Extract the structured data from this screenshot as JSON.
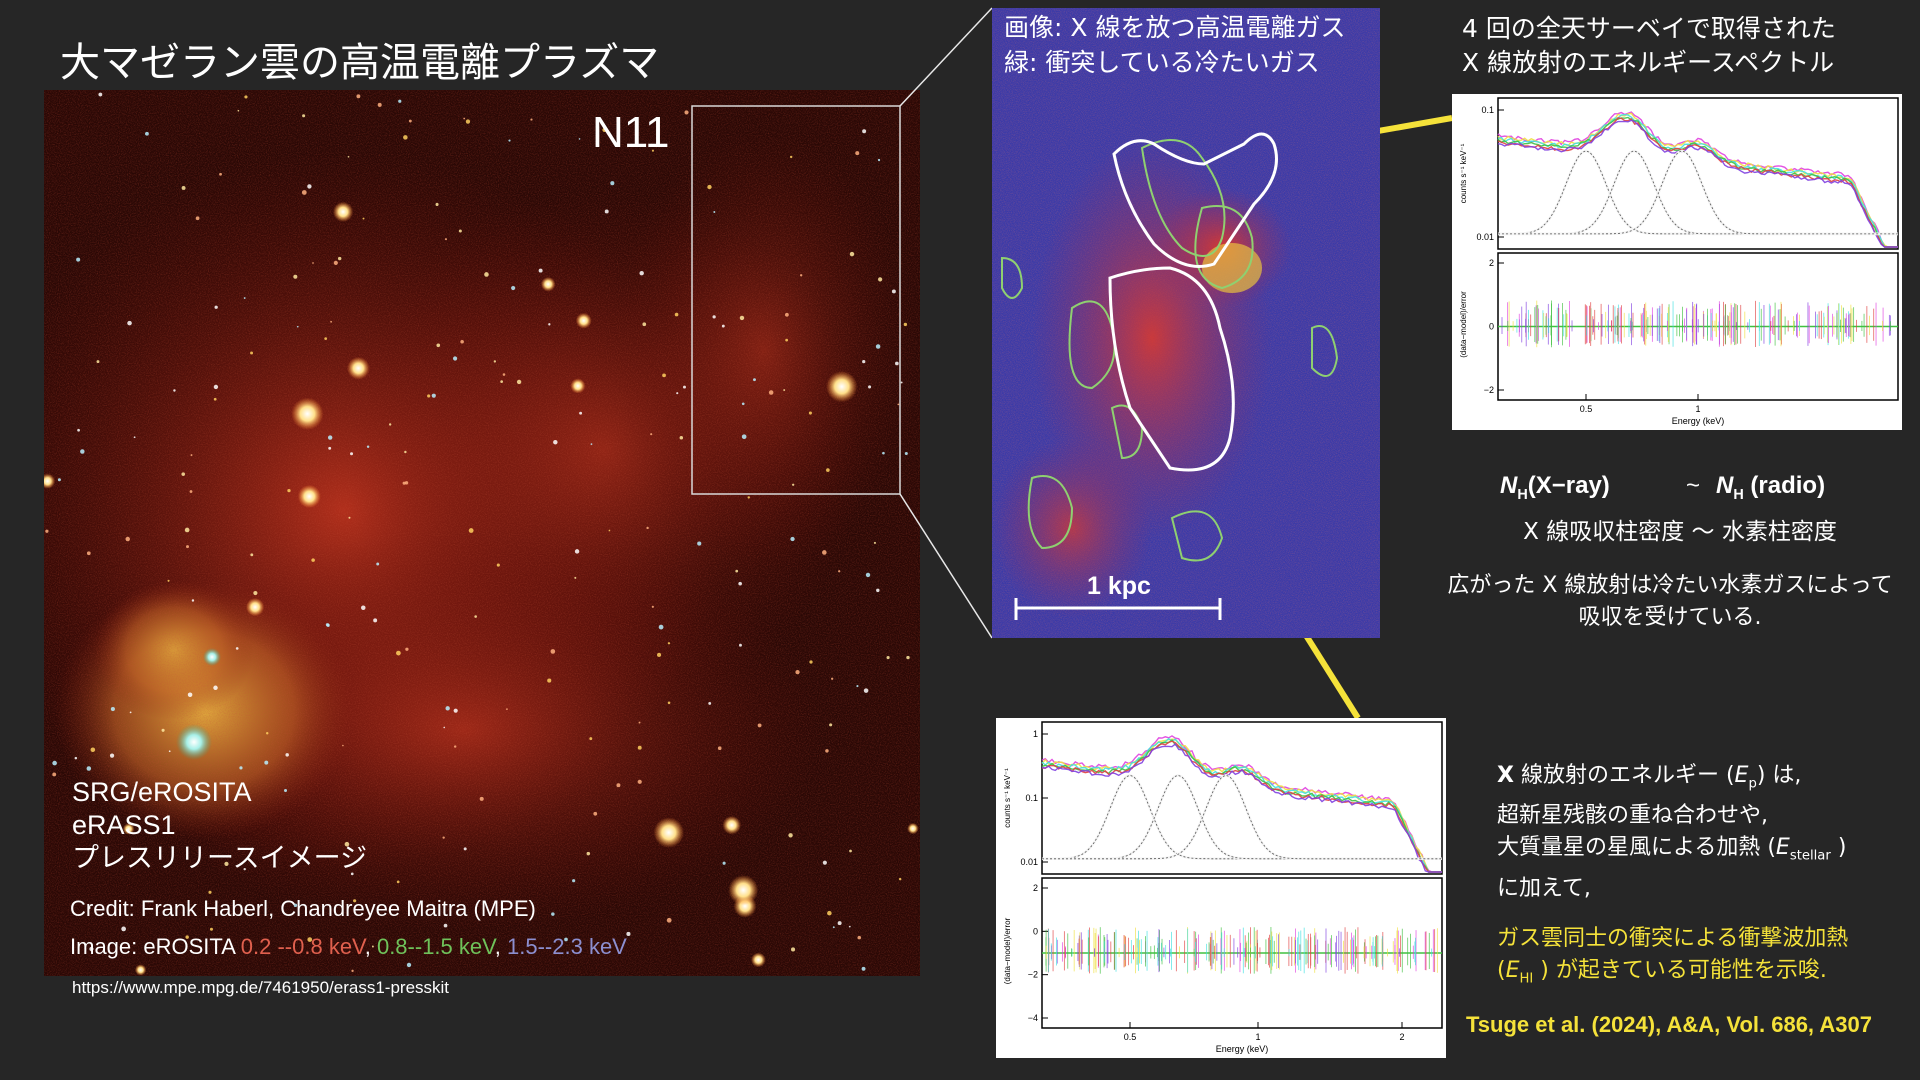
{
  "slide": {
    "title": "大マゼラン雲の高温電離プラズマ"
  },
  "main_image": {
    "region_label": "N11",
    "credit_lines": [
      "SRG/eROSITA",
      "eRASS1",
      "プレスリリースイメージ"
    ],
    "credit": "Credit: Frank Haberl, Chandreyee Maitra (MPE)",
    "image_prefix": "Image: eROSITA ",
    "bands": [
      {
        "text": "0.2 --0.8 keV",
        "color": "#e0604e"
      },
      {
        "text": "0.8--1.5 keV",
        "color": "#6fc25a"
      },
      {
        "text": "1.5--2.3 keV",
        "color": "#8c8fd0"
      }
    ],
    "band_sep": ", ",
    "url": "https://www.mpe.mpg.de/7461950/erass1-presskit"
  },
  "zoom_panel": {
    "caption_lines": [
      "画像: X 線を放つ高温電離ガス",
      "緑: 衝突している冷たいガス"
    ],
    "scale_label": "1 kpc"
  },
  "spectrum_panel": {
    "caption_lines": [
      "4 回の全天サーベイで取得された",
      "X 線放射のエネルギースペクトル"
    ]
  },
  "plot_top": {
    "ylabel_top": "counts s⁻¹ keV⁻¹",
    "ylabel_bottom": "(data−model)/error",
    "xlabel": "Energy (keV)",
    "yticks_top": [
      "0.1",
      "0.01"
    ],
    "yticks_bottom": [
      "2",
      "0",
      "−2"
    ],
    "xticks": [
      "0.5",
      "1"
    ]
  },
  "plot_bottom": {
    "ylabel_top": "counts s⁻¹ keV⁻¹",
    "ylabel_bottom": "(data−model)/error",
    "xlabel": "Energy (keV)",
    "yticks_top": [
      "1",
      "0.1",
      "0.01"
    ],
    "yticks_bottom": [
      "2",
      "0",
      "−2",
      "−4"
    ],
    "xticks": [
      "0.5",
      "1",
      "2"
    ]
  },
  "comparison": {
    "left_symbol": "N",
    "left_sub": "H",
    "left_suffix": "(X−ray)",
    "tilde": "~",
    "right_symbol": "N",
    "right_sub": "H",
    "right_suffix": " (radio)",
    "jp": "X 線吸収柱密度 〜 水素柱密度"
  },
  "absorption_text": [
    "広がった X 線放射は冷たい水素ガスによって",
    "吸収を受けている."
  ],
  "energy_text": {
    "l1_bold": "X",
    "l1_a": " 線放射のエネルギー (",
    "l1_sym": "E",
    "l1_sub": "p",
    "l1_b": ") は,",
    "l2": "超新星残骸の重ね合わせや,",
    "l3_a": "大質量星の星風による加熱 (",
    "l3_sym": "E",
    "l3_sub": "stellar",
    "l3_b": " )",
    "l4": "に加えて,",
    "l5": "ガス雲同士の衝突による衝撃波加熱",
    "l6_a": "(",
    "l6_sym": "E",
    "l6_sub": "HI",
    "l6_b": " ) が起きている可能性を示唆."
  },
  "reference": "Tsuge et al. (2024), A&A, Vol. 686, A307",
  "colors": {
    "accent_yellow": "#f5e23a",
    "background": "#262626"
  }
}
